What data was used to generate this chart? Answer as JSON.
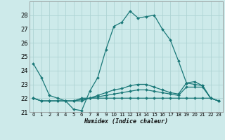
{
  "xlabel": "Humidex (Indice chaleur)",
  "bg_color": "#cdeaea",
  "grid_color": "#aed4d4",
  "line_color": "#1a7878",
  "xlim": [
    -0.5,
    23.5
  ],
  "ylim": [
    21,
    29
  ],
  "yticks": [
    21,
    22,
    23,
    24,
    25,
    26,
    27,
    28
  ],
  "xticks": [
    0,
    1,
    2,
    3,
    4,
    5,
    6,
    7,
    8,
    9,
    10,
    11,
    12,
    13,
    14,
    15,
    16,
    17,
    18,
    19,
    20,
    21,
    22,
    23
  ],
  "series": [
    {
      "x": [
        0,
        1,
        2,
        3,
        4,
        5,
        6,
        7,
        8,
        9,
        10,
        11,
        12,
        13,
        14,
        15,
        16,
        17,
        18,
        19,
        20,
        21,
        22,
        23
      ],
      "y": [
        24.5,
        23.5,
        22.2,
        22.0,
        21.8,
        21.2,
        21.1,
        22.5,
        23.5,
        25.5,
        27.2,
        27.5,
        28.3,
        27.8,
        27.9,
        28.0,
        27.0,
        26.2,
        24.7,
        23.1,
        23.2,
        22.9,
        22.0,
        21.8
      ]
    },
    {
      "x": [
        0,
        1,
        2,
        3,
        4,
        5,
        6,
        7,
        8,
        9,
        10,
        11,
        12,
        13,
        14,
        15,
        16,
        17,
        18,
        19,
        20,
        21,
        22,
        23
      ],
      "y": [
        22.0,
        21.8,
        21.8,
        21.8,
        21.8,
        21.8,
        21.8,
        22.0,
        22.0,
        22.0,
        22.0,
        22.0,
        22.0,
        22.0,
        22.0,
        22.0,
        22.0,
        22.0,
        22.0,
        22.0,
        22.0,
        22.0,
        22.0,
        21.8
      ]
    },
    {
      "x": [
        0,
        1,
        2,
        3,
        4,
        5,
        6,
        7,
        8,
        9,
        10,
        11,
        12,
        13,
        14,
        15,
        16,
        17,
        18,
        19,
        20,
        21,
        22,
        23
      ],
      "y": [
        22.0,
        21.8,
        21.8,
        21.8,
        21.8,
        21.8,
        21.9,
        22.0,
        22.1,
        22.2,
        22.3,
        22.4,
        22.5,
        22.6,
        22.6,
        22.5,
        22.4,
        22.3,
        22.2,
        22.8,
        22.8,
        22.8,
        22.0,
        21.8
      ]
    },
    {
      "x": [
        0,
        1,
        2,
        3,
        4,
        5,
        6,
        7,
        8,
        9,
        10,
        11,
        12,
        13,
        14,
        15,
        16,
        17,
        18,
        19,
        20,
        21,
        22,
        23
      ],
      "y": [
        22.0,
        21.8,
        21.8,
        21.8,
        21.8,
        21.8,
        22.0,
        22.0,
        22.2,
        22.4,
        22.6,
        22.7,
        22.9,
        23.0,
        23.0,
        22.8,
        22.6,
        22.4,
        22.3,
        23.1,
        23.0,
        22.9,
        22.0,
        21.8
      ]
    }
  ]
}
